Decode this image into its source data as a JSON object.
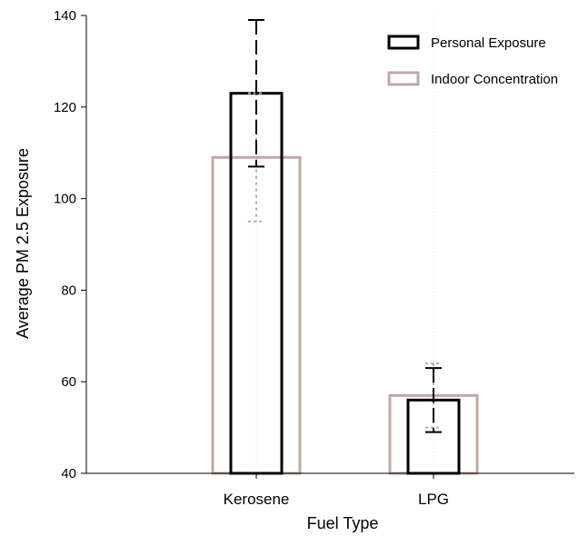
{
  "chart_data": {
    "type": "bar",
    "title": "",
    "xlabel": "Fuel Type",
    "ylabel": "Average PM 2.5 Exposure",
    "categories": [
      "Kerosene",
      "LPG"
    ],
    "ylim": [
      40,
      140
    ],
    "yticks": [
      40,
      60,
      80,
      100,
      120,
      140
    ],
    "ytick_labels": [
      "40",
      "60",
      "80",
      "100",
      "120",
      "140"
    ],
    "grid": false,
    "legend_position": "top-right",
    "series": [
      {
        "name": "Personal Exposure",
        "color": "#000000",
        "error_style": "long-dash",
        "values": [
          123,
          56
        ],
        "error_low": [
          107,
          49
        ],
        "error_high": [
          139,
          63
        ]
      },
      {
        "name": "Indoor Concentration",
        "color": "#c0a8a6",
        "error_style": "dotted",
        "values": [
          109,
          57
        ],
        "error_low": [
          95,
          50
        ],
        "error_high": [
          123,
          64
        ]
      }
    ]
  }
}
